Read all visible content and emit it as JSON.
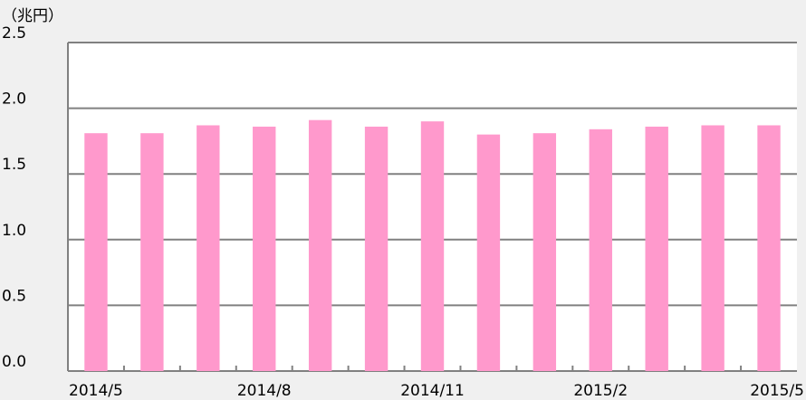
{
  "chart_data": {
    "type": "bar",
    "y_axis_label": "（兆円）",
    "categories": [
      "2014/5",
      null,
      null,
      "2014/8",
      null,
      null,
      "2014/11",
      null,
      null,
      "2015/2",
      null,
      null,
      "2015/5"
    ],
    "values": [
      1.81,
      1.81,
      1.87,
      1.86,
      1.91,
      1.86,
      1.9,
      1.8,
      1.81,
      1.84,
      1.86,
      1.87,
      1.87
    ],
    "color": "#ff99cc",
    "ylim": [
      0,
      2.5
    ],
    "yticks": [
      {
        "value": 0,
        "label": "0.0"
      },
      0.5,
      {
        "value": 1,
        "label": "1.0"
      },
      1.5,
      {
        "value": 2,
        "label": "2.0"
      },
      2.5
    ],
    "grid": true
  }
}
